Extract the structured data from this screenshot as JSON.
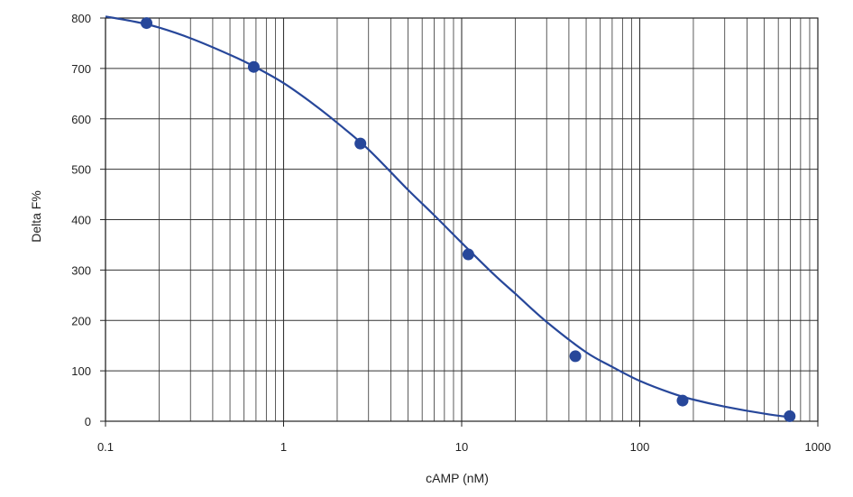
{
  "chart_data": {
    "type": "scatter",
    "title": "",
    "xlabel": "cAMP  (nM)",
    "ylabel": "Delta F%",
    "xscale": "log",
    "xlim": [
      0.1,
      1000
    ],
    "ylim": [
      0,
      800
    ],
    "grid": true,
    "legend": "none",
    "xticks": [
      "0.1",
      "1",
      "10",
      "100",
      "1000"
    ],
    "yticks": [
      "0",
      "100",
      "200",
      "300",
      "400",
      "500",
      "600",
      "700",
      "800"
    ],
    "color": "#27479a",
    "series": [
      {
        "kind": "points",
        "x": [
          0.17,
          0.68,
          2.7,
          10.9,
          43.5,
          174,
          695
        ],
        "y": [
          790,
          703,
          551,
          331,
          129,
          41,
          10
        ]
      },
      {
        "kind": "fit-curve",
        "x": [
          0.1,
          0.15,
          0.2,
          0.3,
          0.5,
          0.7,
          1,
          1.5,
          2,
          3,
          5,
          7,
          10,
          15,
          20,
          30,
          50,
          70,
          100,
          150,
          200,
          300,
          500,
          700
        ],
        "y": [
          803,
          792,
          781,
          760,
          727,
          702,
          671,
          627,
          592,
          539,
          459,
          409,
          354,
          293,
          253,
          197,
          137,
          108,
          80,
          56,
          43,
          29,
          15,
          8
        ]
      }
    ]
  }
}
